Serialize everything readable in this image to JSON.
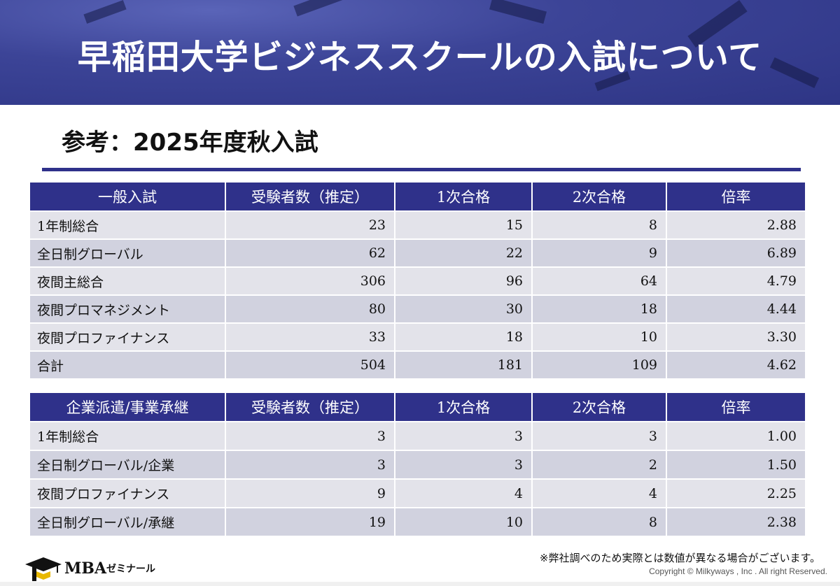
{
  "banner": {
    "title": "早稲田大学ビジネススクールの入試について"
  },
  "section": {
    "title": "参考：2025年度秋入試"
  },
  "table1": {
    "headers": [
      "一般入試",
      "受験者数（推定）",
      "1次合格",
      "2次合格",
      "倍率"
    ],
    "rows": [
      [
        "1年制総合",
        "23",
        "15",
        "8",
        "2.88"
      ],
      [
        "全日制グローバル",
        "62",
        "22",
        "9",
        "6.89"
      ],
      [
        "夜間主総合",
        "306",
        "96",
        "64",
        "4.79"
      ],
      [
        "夜間プロマネジメント",
        "80",
        "30",
        "18",
        "4.44"
      ],
      [
        "夜間プロファイナンス",
        "33",
        "18",
        "10",
        "3.30"
      ],
      [
        "合計",
        "504",
        "181",
        "109",
        "4.62"
      ]
    ]
  },
  "table2": {
    "headers": [
      "企業派遣/事業承継",
      "受験者数（推定）",
      "1次合格",
      "2次合格",
      "倍率"
    ],
    "rows": [
      [
        "1年制総合",
        "3",
        "3",
        "3",
        "1.00"
      ],
      [
        "全日制グローバル/企業",
        "3",
        "3",
        "2",
        "1.50"
      ],
      [
        "夜間プロファイナンス",
        "9",
        "4",
        "4",
        "2.25"
      ],
      [
        "全日制グローバル/承継",
        "19",
        "10",
        "8",
        "2.38"
      ]
    ]
  },
  "footer": {
    "note": "※弊社調べのため実際とは数値が異なる場合がございます。",
    "copyright": "Copyright © Milkyways , Inc . All right Reserved.",
    "logo_mba": "MBA",
    "logo_zemi": "ゼミナール",
    "logo_icon": "graduation-cap-icon"
  },
  "colors": {
    "header_navy": "#2f318a",
    "row_light": "#e3e3ea",
    "row_dark": "#d1d2df"
  }
}
